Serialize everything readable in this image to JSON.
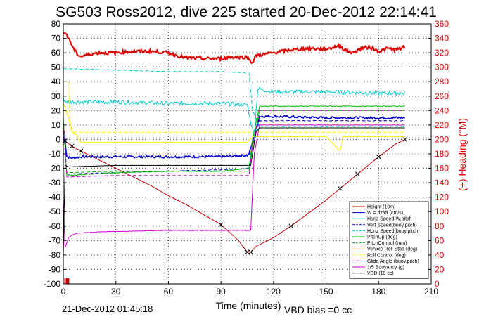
{
  "chart_data": {
    "type": "line",
    "title": "SG503 Ross2012, dive 225 started 20-Dec-2012 22:14:41",
    "xlabel": "Time (minutes)",
    "ylabel_right": "(+) Heading (°M)",
    "footer_left": "21-Dec-2012 01:45:18",
    "footer_right": "VBD bias =0 cc",
    "xlim": [
      0,
      210
    ],
    "ylim": [
      -100,
      80
    ],
    "ylim_right": [
      0,
      360
    ],
    "x_ticks": [
      0,
      30,
      60,
      90,
      120,
      150,
      180,
      210
    ],
    "y_ticks": [
      -100,
      -90,
      -80,
      -70,
      -60,
      -50,
      -40,
      -30,
      -20,
      -10,
      0,
      10,
      20,
      30,
      40,
      50,
      60,
      70,
      80
    ],
    "y_ticks_right": [
      0,
      20,
      40,
      60,
      80,
      100,
      120,
      140,
      160,
      180,
      200,
      220,
      240,
      260,
      280,
      300,
      320,
      340,
      360
    ],
    "grid": true,
    "legend_position": "lower-right",
    "colors": {
      "heading": "#e00000",
      "height": "#cc0000",
      "w": "#0000cc",
      "horiz_w": "#00cccc",
      "vert_buoy": "#0000cc",
      "horiz_buoy": "#00cccc",
      "pitch": "#00bb00",
      "pitch_control": "#00bb00",
      "roll": "#ffee00",
      "roll_control": "#ffee00",
      "glide": "#cc00cc",
      "buoyancy": "#cc00cc",
      "vbd": "#000000"
    },
    "series": [
      {
        "name": "Height (10m)",
        "key": "height",
        "style": "solid",
        "marker": "x",
        "x": [
          0,
          2,
          4,
          10,
          20,
          30,
          40,
          50,
          60,
          70,
          80,
          90,
          100,
          105,
          107,
          110,
          120,
          130,
          140,
          150,
          160,
          170,
          180,
          190,
          195
        ],
        "y": [
          0,
          -2,
          -4,
          -8,
          -14,
          -20,
          -26,
          -32,
          -39,
          -45,
          -52,
          -59,
          -70,
          -78,
          -78,
          -74,
          -68,
          -60,
          -51,
          -42,
          -32,
          -22,
          -12,
          -3,
          0
        ]
      },
      {
        "name": "W = dz/dt (cm/s)",
        "key": "w",
        "style": "solid",
        "x": [
          0,
          2,
          5,
          10,
          30,
          60,
          90,
          105,
          106,
          108,
          112,
          120,
          150,
          180,
          195
        ],
        "y": [
          10,
          -12,
          -13,
          -12,
          -12,
          -12,
          -12,
          -11,
          -10,
          -2,
          16,
          16,
          15,
          15,
          15
        ]
      },
      {
        "name": "Horiz Speed W,pitch",
        "key": "horiz_w",
        "style": "solid",
        "x": [
          0,
          2,
          5,
          30,
          60,
          90,
          105,
          107,
          109,
          111,
          120,
          150,
          180,
          195
        ],
        "y": [
          28,
          26,
          26,
          26,
          25,
          25,
          24,
          12,
          3,
          35,
          33,
          33,
          32,
          32
        ]
      },
      {
        "name": "Vert Speed(buoy,pitch)",
        "key": "vert_buoy",
        "style": "dashed",
        "x": [
          0,
          2,
          30,
          60,
          90,
          106,
          108,
          112,
          150,
          180,
          195
        ],
        "y": [
          10,
          -24,
          -23,
          -22,
          -21,
          -20,
          -5,
          13,
          13,
          13,
          13
        ]
      },
      {
        "name": "Horiz Speed(buoy,pitch)",
        "key": "horiz_buoy",
        "style": "dashed",
        "x": [
          0,
          2,
          30,
          60,
          90,
          106,
          108,
          112,
          150,
          180,
          195
        ],
        "y": [
          49,
          49,
          48,
          47,
          47,
          46,
          20,
          9,
          9,
          9,
          9
        ]
      },
      {
        "name": "PitchUp (deg)",
        "key": "pitch",
        "style": "solid",
        "x": [
          0,
          2,
          30,
          60,
          90,
          106,
          108,
          112,
          150,
          180,
          195
        ],
        "y": [
          15,
          -25,
          -23,
          -22,
          -22,
          -20,
          0,
          23,
          23,
          23,
          23
        ]
      },
      {
        "name": "PitchControl (mm)",
        "key": "pitch_control",
        "style": "dashed",
        "x": [
          0,
          2,
          30,
          60,
          90,
          106,
          108,
          112,
          150,
          180,
          195
        ],
        "y": [
          10,
          -23,
          -22,
          -22,
          -22,
          -22,
          -5,
          20,
          20,
          20,
          20
        ]
      },
      {
        "name": "Vehicle Roll Stbd (deg)",
        "key": "roll",
        "style": "solid",
        "x": [
          0,
          3,
          5,
          8,
          10,
          30,
          60,
          90,
          105,
          108,
          115,
          120,
          150,
          158,
          160,
          162,
          180,
          195
        ],
        "y": [
          25,
          15,
          5,
          3,
          -2,
          -2,
          -2,
          -2,
          -2,
          2,
          2,
          2,
          2,
          -8,
          2,
          2,
          2,
          2
        ]
      },
      {
        "name": "Roll Control (deg)",
        "key": "roll_control",
        "style": "dashed",
        "x": [
          0,
          3,
          4,
          6,
          10,
          30,
          60,
          90,
          105,
          108,
          115,
          150,
          195
        ],
        "y": [
          40,
          40,
          10,
          5,
          5,
          5,
          5,
          5,
          5,
          5,
          5,
          5,
          5
        ]
      },
      {
        "name": "Glide Angle (buoy,pitch)",
        "key": "glide",
        "style": "dashed",
        "x": [
          0,
          2,
          30,
          60,
          90,
          106,
          108,
          112,
          150,
          180,
          195
        ],
        "y": [
          10,
          -26,
          -25,
          -25,
          -25,
          -25,
          -5,
          20,
          20,
          20,
          20
        ]
      },
      {
        "name": "1/5 Buoyancy (g)",
        "key": "buoyancy",
        "style": "solid",
        "x": [
          0,
          1,
          3,
          5,
          8,
          20,
          60,
          90,
          107,
          109,
          112,
          150,
          180,
          195
        ],
        "y": [
          -40,
          -75,
          -68,
          -66,
          -65,
          -64,
          -63,
          -63,
          -63,
          -10,
          10,
          10,
          10,
          10
        ]
      },
      {
        "name": "VBD (10 cc)",
        "key": "vbd",
        "style": "solid",
        "x": [
          0,
          1,
          3,
          30,
          60,
          90,
          107,
          110,
          112,
          150,
          180,
          195
        ],
        "y": [
          -80,
          -18,
          -19,
          -18,
          -18,
          -18,
          -18,
          5,
          8,
          8,
          8,
          8
        ]
      },
      {
        "name": "Heading",
        "key": "heading",
        "style": "solid",
        "axis": "right",
        "x": [
          0,
          2,
          4,
          6,
          8,
          10,
          15,
          20,
          30,
          40,
          50,
          60,
          65,
          70,
          80,
          90,
          95,
          100,
          105,
          108,
          110,
          115,
          120,
          125,
          130,
          140,
          150,
          155,
          158,
          160,
          165,
          170,
          175,
          180,
          185,
          190,
          195
        ],
        "y": [
          350,
          345,
          335,
          325,
          318,
          315,
          318,
          320,
          320,
          322,
          322,
          320,
          316,
          313,
          312,
          312,
          314,
          314,
          314,
          306,
          316,
          318,
          320,
          322,
          324,
          326,
          325,
          328,
          330,
          325,
          320,
          326,
          328,
          322,
          326,
          324,
          328
        ]
      }
    ],
    "markers": {
      "height_x_marks": [
        1,
        5,
        10,
        90,
        105,
        107,
        130,
        158,
        168,
        180,
        195
      ]
    },
    "heading_spikes_near_zero_x": [
      1,
      2,
      3
    ]
  }
}
